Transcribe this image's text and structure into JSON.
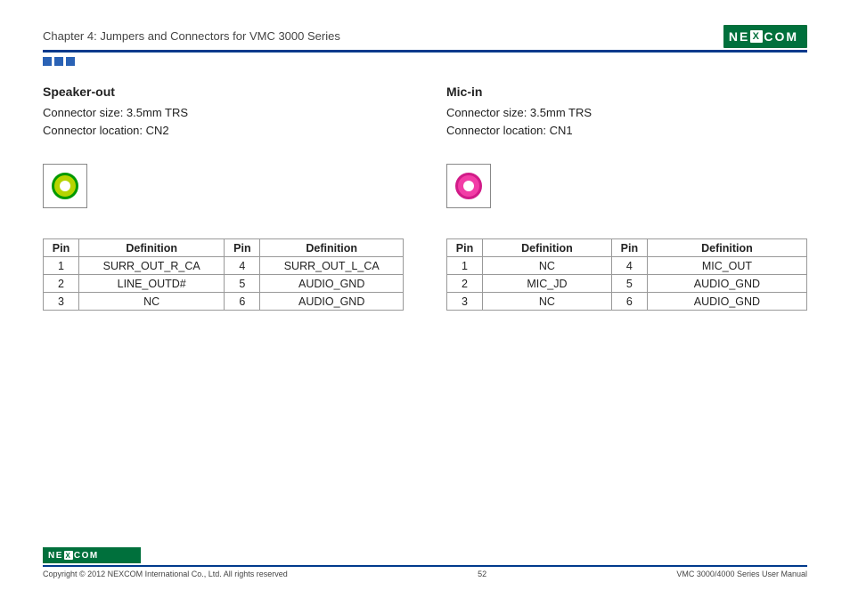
{
  "header": {
    "chapter": "Chapter 4: Jumpers and Connectors for VMC 3000 Series",
    "brand_pre": "NE",
    "brand_x": "X",
    "brand_post": "COM",
    "brand_bg": "#00703c",
    "rule_color": "#003a8c",
    "square_color": "#2a62b5"
  },
  "sections": {
    "left": {
      "title": "Speaker-out",
      "size_line": "Connector size: 3.5mm TRS",
      "loc_line": "Connector location: CN2",
      "jack": {
        "ring_color": "#b6d400",
        "border_color": "#009900"
      },
      "table": {
        "headers": {
          "pin": "Pin",
          "def": "Definition"
        },
        "rows": [
          {
            "p1": "1",
            "d1": "SURR_OUT_R_CA",
            "p2": "4",
            "d2": "SURR_OUT_L_CA"
          },
          {
            "p1": "2",
            "d1": "LINE_OUTD#",
            "p2": "5",
            "d2": "AUDIO_GND"
          },
          {
            "p1": "3",
            "d1": "NC",
            "p2": "6",
            "d2": "AUDIO_GND"
          }
        ]
      }
    },
    "right": {
      "title": "Mic-in",
      "size_line": "Connector size: 3.5mm TRS",
      "loc_line": "Connector location: CN1",
      "jack": {
        "ring_color": "#f23da6",
        "border_color": "#d11b88"
      },
      "table": {
        "headers": {
          "pin": "Pin",
          "def": "Definition"
        },
        "rows": [
          {
            "p1": "1",
            "d1": "NC",
            "p2": "4",
            "d2": "MIC_OUT"
          },
          {
            "p1": "2",
            "d1": "MIC_JD",
            "p2": "5",
            "d2": "AUDIO_GND"
          },
          {
            "p1": "3",
            "d1": "NC",
            "p2": "6",
            "d2": "AUDIO_GND"
          }
        ]
      }
    }
  },
  "footer": {
    "copyright": "Copyright © 2012 NEXCOM International Co., Ltd. All rights reserved",
    "page": "52",
    "doc": "VMC 3000/4000 Series User Manual"
  }
}
